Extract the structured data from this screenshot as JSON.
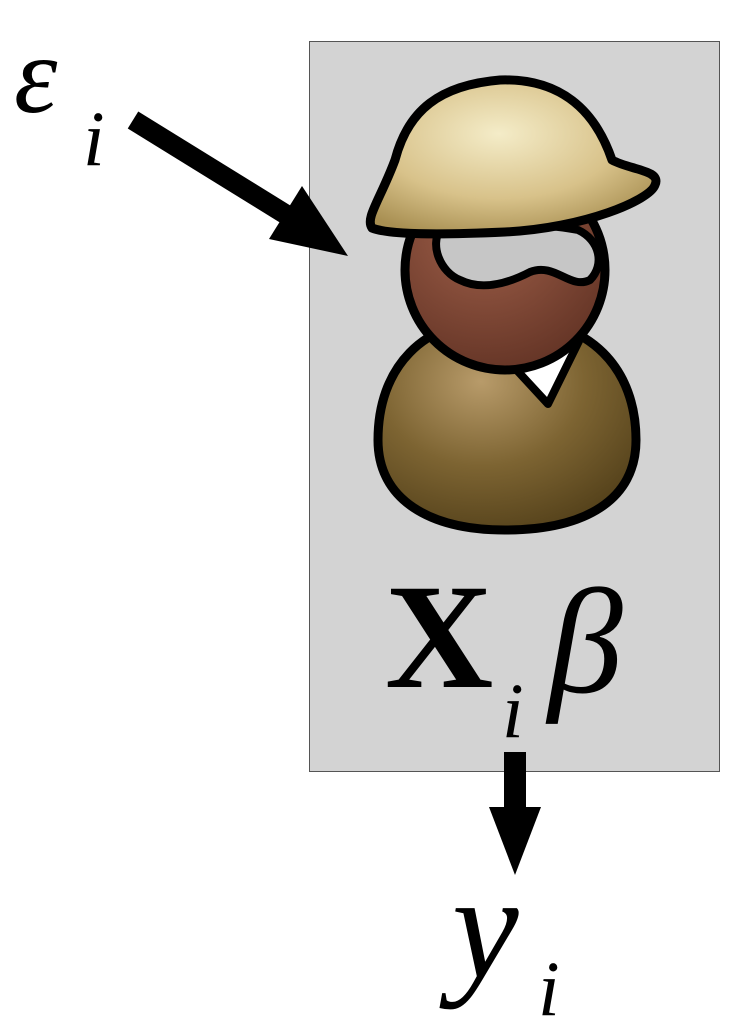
{
  "diagram": {
    "error_term": {
      "symbol": "ε",
      "subscript": "i"
    },
    "linear_predictor": {
      "symbol": "X",
      "subscript": "i",
      "coefficient": "β"
    },
    "outcome": {
      "symbol": "y",
      "subscript": "i"
    },
    "person_icon": "person-with-hat-and-sunglasses-icon",
    "colors": {
      "panel": "#d3d3d3",
      "hat": "#d8c28a",
      "face": "#7a4634",
      "body": "#6b5527",
      "glasses": "#c6c6c6",
      "arrow": "#000000"
    }
  }
}
